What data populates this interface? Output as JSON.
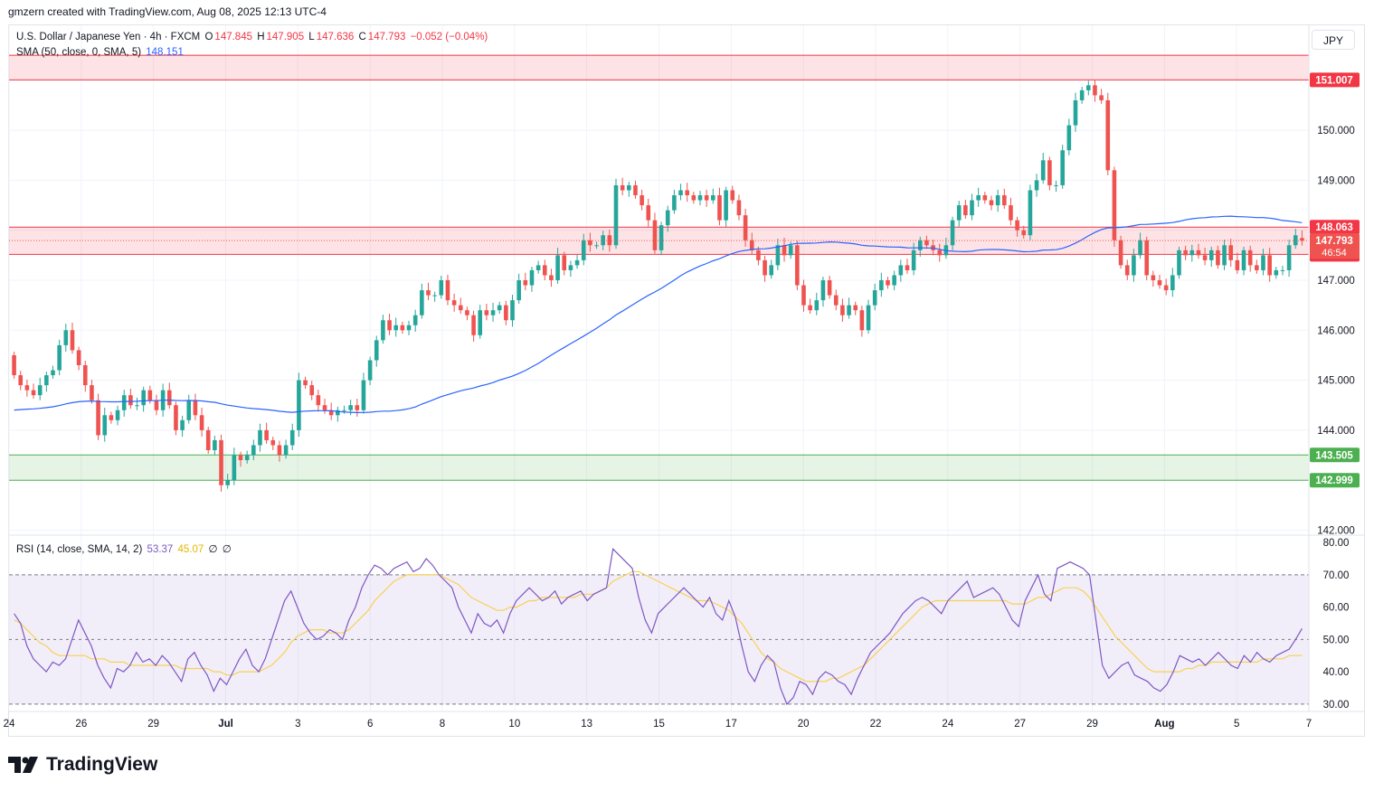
{
  "header": {
    "credit": "gmzern created with TradingView.com, Aug 08, 2025 12:13 UTC-4"
  },
  "main_legend": {
    "symbol": "U.S. Dollar / Japanese Yen · 4h · FXCM",
    "o_label": "O",
    "o": "147.845",
    "h_label": "H",
    "h": "147.905",
    "l_label": "L",
    "l": "147.636",
    "c_label": "C",
    "c": "147.793",
    "change": "−0.052 (−0.04%)"
  },
  "sma_legend": {
    "label": "SMA (50, close, 0, SMA, 5)",
    "value": "148.151"
  },
  "rsi_legend": {
    "label": "RSI (14, close, SMA, 14, 2)",
    "rsi": "53.37",
    "rsi_ma": "45.07",
    "extra1": "∅",
    "extra2": "∅"
  },
  "currency": "JPY",
  "brand": {
    "name": "TradingView"
  },
  "colors": {
    "up": "#26a69a",
    "down": "#ef5350",
    "sma": "#2962ff",
    "rsi": "#7e57c2",
    "rsi_ma": "#f7d154",
    "resistance_zone": "#f23645",
    "support_zone": "#4caf50"
  },
  "chart_data": [
    {
      "type": "candlestick",
      "y_axis": {
        "ticks": [
          "142.000",
          "143.000",
          "144.000",
          "145.000",
          "146.000",
          "147.000",
          "148.000",
          "149.000",
          "150.000",
          "151.000"
        ],
        "range": [
          141.9,
          152.1
        ]
      },
      "x_axis": {
        "labels": [
          "24",
          "26",
          "29",
          "Jul",
          "3",
          "6",
          "8",
          "10",
          "13",
          "15",
          "17",
          "20",
          "22",
          "24",
          "27",
          "29",
          "Aug",
          "5",
          "7"
        ]
      },
      "zones": [
        {
          "name": "resistance-top",
          "low": 151.007,
          "high": 151.5,
          "label": "151.007"
        },
        {
          "name": "resistance-mid",
          "low": 147.517,
          "high": 148.063,
          "label_high": "148.063",
          "label_low": "147.517"
        },
        {
          "name": "support",
          "low": 142.999,
          "high": 143.505,
          "label_high": "143.505",
          "label_low": "142.999"
        }
      ],
      "last_price": {
        "value": 147.793,
        "label": "147.793",
        "countdown": "46:54"
      },
      "sma_last": 148.151,
      "candles": [
        [
          145.5,
          145.1
        ],
        [
          145.1,
          144.9
        ],
        [
          144.9,
          144.8
        ],
        [
          144.8,
          144.7
        ],
        [
          144.7,
          144.9
        ],
        [
          144.9,
          145.1
        ],
        [
          145.1,
          145.2
        ],
        [
          145.2,
          145.7
        ],
        [
          145.7,
          146.0
        ],
        [
          146.0,
          145.6
        ],
        [
          145.6,
          145.3
        ],
        [
          145.3,
          144.9
        ],
        [
          144.9,
          144.6
        ],
        [
          144.6,
          143.9
        ],
        [
          143.9,
          144.3
        ],
        [
          144.3,
          144.2
        ],
        [
          144.2,
          144.4
        ],
        [
          144.4,
          144.7
        ],
        [
          144.7,
          144.5
        ],
        [
          144.5,
          144.5
        ],
        [
          144.5,
          144.8
        ],
        [
          144.8,
          144.6
        ],
        [
          144.6,
          144.4
        ],
        [
          144.4,
          144.8
        ],
        [
          144.8,
          144.5
        ],
        [
          144.5,
          144.0
        ],
        [
          144.0,
          144.2
        ],
        [
          144.2,
          144.6
        ],
        [
          144.6,
          144.3
        ],
        [
          144.3,
          144.0
        ],
        [
          144.0,
          143.6
        ],
        [
          143.6,
          143.8
        ],
        [
          143.8,
          142.9
        ],
        [
          142.9,
          143.0
        ],
        [
          143.0,
          143.5
        ],
        [
          143.5,
          143.4
        ],
        [
          143.4,
          143.5
        ],
        [
          143.5,
          143.7
        ],
        [
          143.7,
          144.0
        ],
        [
          144.0,
          143.8
        ],
        [
          143.8,
          143.7
        ],
        [
          143.7,
          143.5
        ],
        [
          143.5,
          143.7
        ],
        [
          143.7,
          144.0
        ],
        [
          144.0,
          145.0
        ],
        [
          145.0,
          144.9
        ],
        [
          144.9,
          144.7
        ],
        [
          144.7,
          144.5
        ],
        [
          144.5,
          144.4
        ],
        [
          144.4,
          144.3
        ],
        [
          144.3,
          144.4
        ],
        [
          144.4,
          144.4
        ],
        [
          144.4,
          144.5
        ],
        [
          144.5,
          144.4
        ],
        [
          144.4,
          145.0
        ],
        [
          145.0,
          145.4
        ],
        [
          145.4,
          145.8
        ],
        [
          145.8,
          146.2
        ],
        [
          146.2,
          146.0
        ],
        [
          146.0,
          146.1
        ],
        [
          146.1,
          146.0
        ],
        [
          146.0,
          146.1
        ],
        [
          146.1,
          146.3
        ],
        [
          146.3,
          146.8
        ],
        [
          146.8,
          146.7
        ],
        [
          146.7,
          146.7
        ],
        [
          146.7,
          147.0
        ],
        [
          147.0,
          146.6
        ],
        [
          146.6,
          146.5
        ],
        [
          146.5,
          146.4
        ],
        [
          146.4,
          146.3
        ],
        [
          146.3,
          145.9
        ],
        [
          145.9,
          146.4
        ],
        [
          146.4,
          146.3
        ],
        [
          146.3,
          146.4
        ],
        [
          146.4,
          146.5
        ],
        [
          146.5,
          146.2
        ],
        [
          146.2,
          146.6
        ],
        [
          146.6,
          147.0
        ],
        [
          147.0,
          146.9
        ],
        [
          146.9,
          147.2
        ],
        [
          147.2,
          147.3
        ],
        [
          147.3,
          147.1
        ],
        [
          147.1,
          147.0
        ],
        [
          147.0,
          147.5
        ],
        [
          147.5,
          147.2
        ],
        [
          147.2,
          147.3
        ],
        [
          147.3,
          147.4
        ],
        [
          147.4,
          147.8
        ],
        [
          147.8,
          147.7
        ],
        [
          147.7,
          147.7
        ],
        [
          147.7,
          147.9
        ],
        [
          147.9,
          147.7
        ],
        [
          147.7,
          148.9
        ],
        [
          148.9,
          148.8
        ],
        [
          148.8,
          148.9
        ],
        [
          148.9,
          148.7
        ],
        [
          148.7,
          148.5
        ],
        [
          148.5,
          148.2
        ],
        [
          148.2,
          147.6
        ],
        [
          147.6,
          148.1
        ],
        [
          148.1,
          148.4
        ],
        [
          148.4,
          148.7
        ],
        [
          148.7,
          148.8
        ],
        [
          148.8,
          148.7
        ],
        [
          148.7,
          148.6
        ],
        [
          148.6,
          148.7
        ],
        [
          148.7,
          148.6
        ],
        [
          148.6,
          148.7
        ],
        [
          148.7,
          148.2
        ],
        [
          148.2,
          148.8
        ],
        [
          148.8,
          148.6
        ],
        [
          148.6,
          148.3
        ],
        [
          148.3,
          147.8
        ],
        [
          147.8,
          147.6
        ],
        [
          147.6,
          147.4
        ],
        [
          147.4,
          147.1
        ],
        [
          147.1,
          147.3
        ],
        [
          147.3,
          147.7
        ],
        [
          147.7,
          147.5
        ],
        [
          147.5,
          147.7
        ],
        [
          147.7,
          146.9
        ],
        [
          146.9,
          146.5
        ],
        [
          146.5,
          146.4
        ],
        [
          146.4,
          146.6
        ],
        [
          146.6,
          147.0
        ],
        [
          147.0,
          146.7
        ],
        [
          146.7,
          146.5
        ],
        [
          146.5,
          146.3
        ],
        [
          146.3,
          146.5
        ],
        [
          146.5,
          146.4
        ],
        [
          146.4,
          146.0
        ],
        [
          146.0,
          146.5
        ],
        [
          146.5,
          146.8
        ],
        [
          146.8,
          147.0
        ],
        [
          147.0,
          146.9
        ],
        [
          146.9,
          147.1
        ],
        [
          147.1,
          147.3
        ],
        [
          147.3,
          147.2
        ],
        [
          147.2,
          147.6
        ],
        [
          147.6,
          147.8
        ],
        [
          147.8,
          147.7
        ],
        [
          147.7,
          147.6
        ],
        [
          147.6,
          147.5
        ],
        [
          147.5,
          147.7
        ],
        [
          147.7,
          148.2
        ],
        [
          148.2,
          148.5
        ],
        [
          148.5,
          148.3
        ],
        [
          148.3,
          148.6
        ],
        [
          148.6,
          148.7
        ],
        [
          148.7,
          148.6
        ],
        [
          148.6,
          148.5
        ],
        [
          148.5,
          148.7
        ],
        [
          148.7,
          148.5
        ],
        [
          148.5,
          148.2
        ],
        [
          148.2,
          148.0
        ],
        [
          148.0,
          147.9
        ],
        [
          147.9,
          148.8
        ],
        [
          148.8,
          149.0
        ],
        [
          149.0,
          149.4
        ],
        [
          149.4,
          148.9
        ],
        [
          148.9,
          148.9
        ],
        [
          148.9,
          149.6
        ],
        [
          149.6,
          150.1
        ],
        [
          150.1,
          150.6
        ],
        [
          150.6,
          150.8
        ],
        [
          150.8,
          150.9
        ],
        [
          150.9,
          150.7
        ],
        [
          150.7,
          150.6
        ],
        [
          150.6,
          149.2
        ],
        [
          149.2,
          147.8
        ],
        [
          147.8,
          147.3
        ],
        [
          147.3,
          147.1
        ],
        [
          147.1,
          147.5
        ],
        [
          147.5,
          147.8
        ],
        [
          147.8,
          147.1
        ],
        [
          147.1,
          147.0
        ],
        [
          147.0,
          146.9
        ],
        [
          146.9,
          146.8
        ],
        [
          146.8,
          147.1
        ],
        [
          147.1,
          147.6
        ],
        [
          147.6,
          147.5
        ],
        [
          147.5,
          147.6
        ],
        [
          147.6,
          147.5
        ],
        [
          147.5,
          147.4
        ],
        [
          147.4,
          147.6
        ],
        [
          147.6,
          147.3
        ],
        [
          147.3,
          147.7
        ],
        [
          147.7,
          147.4
        ],
        [
          147.4,
          147.2
        ],
        [
          147.2,
          147.6
        ],
        [
          147.6,
          147.3
        ],
        [
          147.3,
          147.2
        ],
        [
          147.2,
          147.5
        ],
        [
          147.5,
          147.1
        ],
        [
          147.1,
          147.2
        ],
        [
          147.2,
          147.2
        ],
        [
          147.2,
          147.7
        ],
        [
          147.7,
          147.9
        ],
        [
          147.845,
          147.793
        ]
      ]
    },
    {
      "type": "line",
      "name": "RSI (14, close, SMA, 14, 2)",
      "y_axis": {
        "ticks": [
          "30.00",
          "40.00",
          "50.00",
          "60.00",
          "70.00",
          "80.00"
        ],
        "range": [
          28,
          82
        ]
      },
      "bands": {
        "upper": 70,
        "middle": 50,
        "lower": 30
      },
      "rsi_last": 53.37,
      "rsi_ma_last": 45.07,
      "rsi": [
        58,
        55,
        48,
        44,
        42,
        40,
        43,
        42,
        44,
        50,
        56,
        52,
        48,
        42,
        38,
        35,
        41,
        40,
        42,
        46,
        43,
        44,
        42,
        45,
        43,
        40,
        37,
        44,
        46,
        42,
        39,
        34,
        38,
        36,
        40,
        44,
        47,
        42,
        40,
        44,
        50,
        56,
        62,
        65,
        60,
        55,
        52,
        50,
        51,
        53,
        52,
        50,
        56,
        60,
        66,
        70,
        73,
        72,
        70,
        72,
        73,
        74,
        71,
        72,
        75,
        73,
        70,
        68,
        66,
        60,
        56,
        52,
        58,
        55,
        54,
        56,
        52,
        58,
        62,
        64,
        66,
        64,
        62,
        63,
        65,
        61,
        63,
        64,
        65,
        62,
        64,
        65,
        66,
        78,
        76,
        74,
        72,
        63,
        56,
        52,
        58,
        60,
        62,
        64,
        66,
        64,
        62,
        60,
        63,
        58,
        56,
        62,
        57,
        48,
        40,
        37,
        42,
        45,
        43,
        35,
        30,
        32,
        37,
        36,
        33,
        38,
        40,
        39,
        37,
        36,
        33,
        38,
        42,
        46,
        48,
        50,
        52,
        55,
        58,
        60,
        62,
        63,
        62,
        60,
        58,
        62,
        64,
        66,
        68,
        63,
        64,
        65,
        66,
        64,
        60,
        56,
        54,
        62,
        66,
        70,
        64,
        62,
        72,
        73,
        74,
        73,
        72,
        70,
        56,
        42,
        38,
        40,
        42,
        43,
        39,
        38,
        37,
        35,
        34,
        36,
        40,
        45,
        44,
        43,
        44,
        42,
        44,
        46,
        44,
        42,
        41,
        45,
        43,
        46,
        44,
        43,
        45,
        46,
        47,
        50,
        53.37
      ],
      "rsi_ma": [
        56,
        55,
        53,
        51,
        49,
        48,
        46,
        45,
        45,
        45,
        45,
        45,
        44,
        44,
        44,
        43,
        43,
        43,
        42,
        42,
        42,
        42,
        42,
        42,
        42,
        42,
        41,
        41,
        41,
        41,
        41,
        40,
        40,
        39,
        39,
        40,
        40,
        40,
        40,
        41,
        42,
        44,
        46,
        49,
        51,
        52,
        53,
        53,
        53,
        52,
        52,
        52,
        53,
        55,
        57,
        59,
        62,
        64,
        66,
        68,
        69,
        70,
        70,
        70,
        70,
        70,
        70,
        69,
        68,
        67,
        65,
        63,
        62,
        61,
        60,
        59,
        59,
        60,
        60,
        61,
        62,
        62,
        63,
        63,
        63,
        63,
        63,
        63,
        64,
        64,
        64,
        65,
        66,
        68,
        69,
        70,
        71,
        71,
        70,
        69,
        68,
        67,
        66,
        65,
        64,
        63,
        62,
        62,
        62,
        61,
        60,
        59,
        57,
        55,
        52,
        49,
        46,
        44,
        43,
        41,
        40,
        39,
        38,
        37,
        37,
        37,
        37,
        38,
        38,
        39,
        40,
        41,
        42,
        44,
        46,
        48,
        50,
        52,
        54,
        56,
        58,
        60,
        61,
        62,
        62,
        62,
        62,
        62,
        62,
        62,
        62,
        62,
        62,
        62,
        62,
        61,
        61,
        61,
        62,
        63,
        63,
        64,
        65,
        66,
        66,
        66,
        65,
        63,
        60,
        57,
        54,
        51,
        49,
        47,
        45,
        43,
        41,
        40,
        40,
        40,
        40,
        40,
        41,
        41,
        42,
        42,
        43,
        43,
        43,
        43,
        43,
        43,
        43,
        43,
        44,
        44,
        44,
        44,
        45,
        45,
        45.07
      ]
    }
  ]
}
